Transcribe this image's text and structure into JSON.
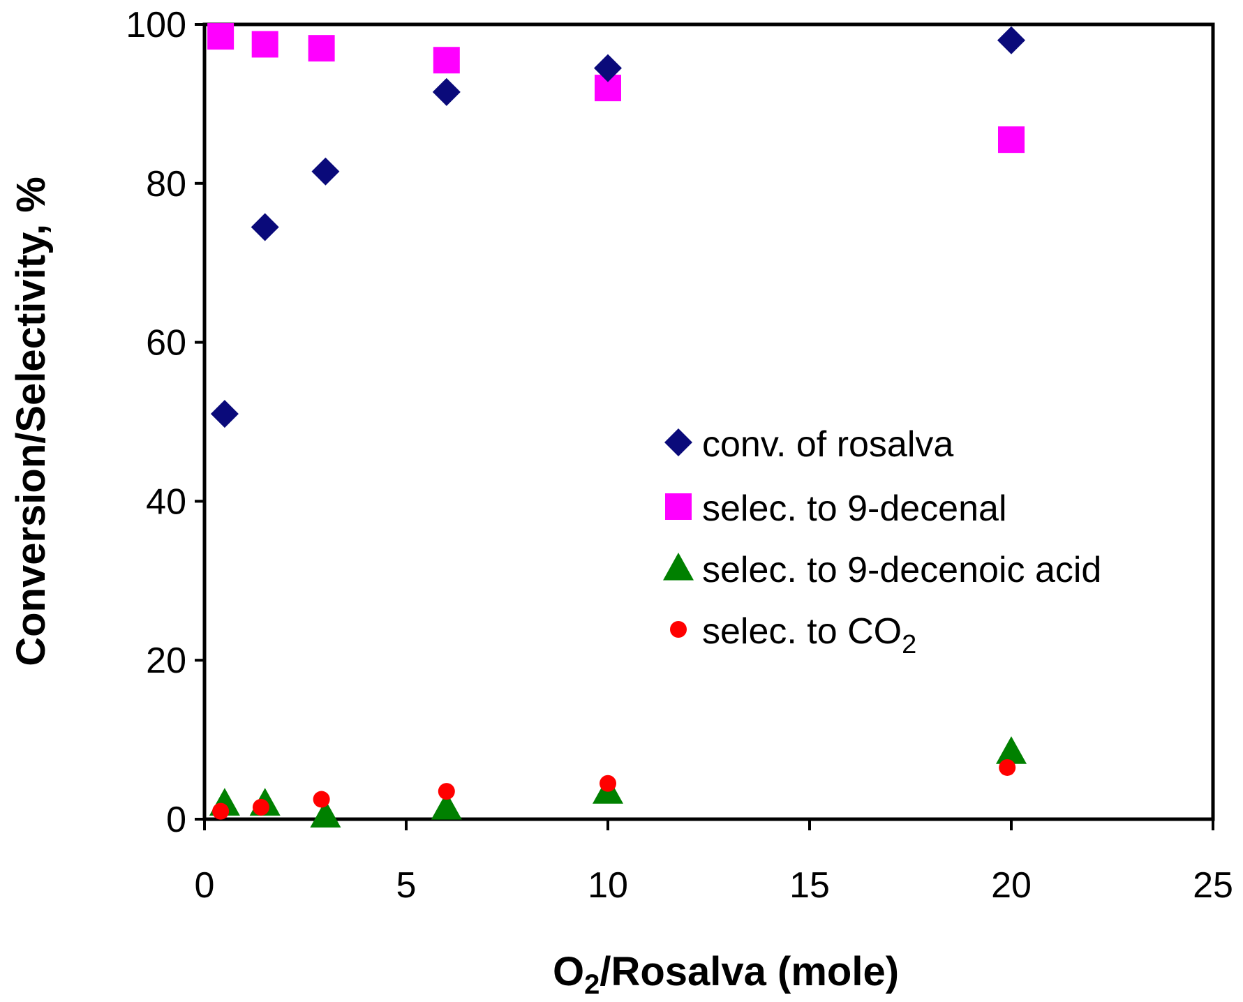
{
  "chart_data": {
    "type": "scatter",
    "title": "",
    "xlabel": {
      "main": "O",
      "sub": "2",
      "rest": "/Rosalva (mole)"
    },
    "ylabel": "Conversion/Selectivity, %",
    "xlim": [
      0,
      25
    ],
    "ylim": [
      0,
      100
    ],
    "x_ticks": [
      0,
      5,
      10,
      15,
      20,
      25
    ],
    "y_ticks": [
      0,
      20,
      40,
      60,
      80,
      100
    ],
    "x_tick_labels": [
      "0",
      "5",
      "10",
      "15",
      "20",
      "25"
    ],
    "y_tick_labels": [
      "0",
      "20",
      "40",
      "60",
      "80",
      "100"
    ],
    "grid": false,
    "legend_position": "center-right",
    "series": [
      {
        "name": "conv. of rosalva",
        "marker": "diamond",
        "color": "#0a0a7a",
        "x": [
          0.5,
          1.5,
          3.0,
          6.0,
          10.0,
          20.0
        ],
        "y": [
          51.0,
          74.5,
          81.5,
          91.5,
          94.5,
          98.0
        ]
      },
      {
        "name": "selec. to 9-decenal",
        "marker": "square",
        "color": "#ff00ff",
        "x": [
          0.4,
          1.5,
          2.9,
          6.0,
          10.0,
          20.0
        ],
        "y": [
          98.5,
          97.5,
          97.0,
          95.5,
          92.0,
          85.5
        ]
      },
      {
        "name": "selec. to 9-decenoic acid",
        "marker": "triangle",
        "color": "#008000",
        "x": [
          0.5,
          1.5,
          3.0,
          6.0,
          10.0,
          20.0
        ],
        "y": [
          2.0,
          2.0,
          0.5,
          1.5,
          3.5,
          8.5
        ]
      },
      {
        "name": "selec. to CO2",
        "legend_label": {
          "main": "selec. to CO",
          "sub": "2"
        },
        "marker": "circle",
        "color": "#ff0000",
        "x": [
          0.4,
          1.4,
          2.9,
          6.0,
          10.0,
          19.9
        ],
        "y": [
          1.0,
          1.5,
          2.5,
          3.5,
          4.5,
          6.5
        ]
      }
    ]
  }
}
